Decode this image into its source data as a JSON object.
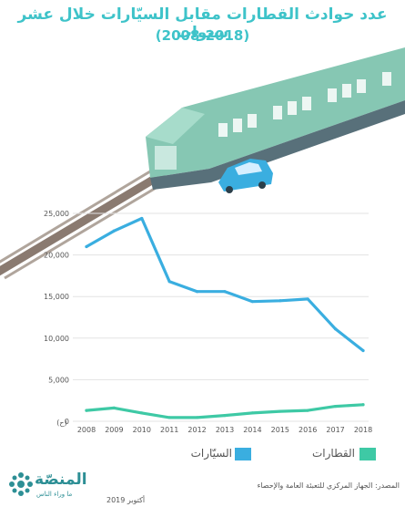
{
  "title": "عدد حوادث القطارات مقابل السيّارات خلال عشر سنوات",
  "subtitle": "(2008-2018)",
  "unit_label": "(ح)",
  "legend": {
    "trains": "القطارات",
    "cars": "السيّارات"
  },
  "source": "المصدر: الجهاز المركزي للتعبئة العامة والإحصاء",
  "date": "أكتوبر 2019",
  "brand": {
    "name": "المنصّة",
    "tagline": "ما وراء الناس"
  },
  "colors": {
    "cars": "#3aaee0",
    "trains": "#3ec9a5",
    "title": "#3ec3c9",
    "grid": "#e3e3e3"
  },
  "chart_data": {
    "type": "line",
    "categories": [
      "2008",
      "2009",
      "2010",
      "2011",
      "2012",
      "2013",
      "2014",
      "2015",
      "2016",
      "2017",
      "2018"
    ],
    "y_ticks": [
      "0",
      "5,000",
      "10,000",
      "15,000",
      "20,000",
      "25,000"
    ],
    "ylim": [
      0,
      25000
    ],
    "series": [
      {
        "name": "السيّارات",
        "color": "#3aaee0",
        "values": [
          21000,
          22900,
          24400,
          16800,
          15600,
          15600,
          14400,
          14500,
          14700,
          11100,
          8500
        ]
      },
      {
        "name": "القطارات",
        "color": "#3ec9a5",
        "values": [
          1300,
          1600,
          1000,
          450,
          450,
          700,
          1000,
          1200,
          1300,
          1800,
          2000
        ]
      }
    ],
    "grid": true,
    "legend_position": "bottom"
  }
}
